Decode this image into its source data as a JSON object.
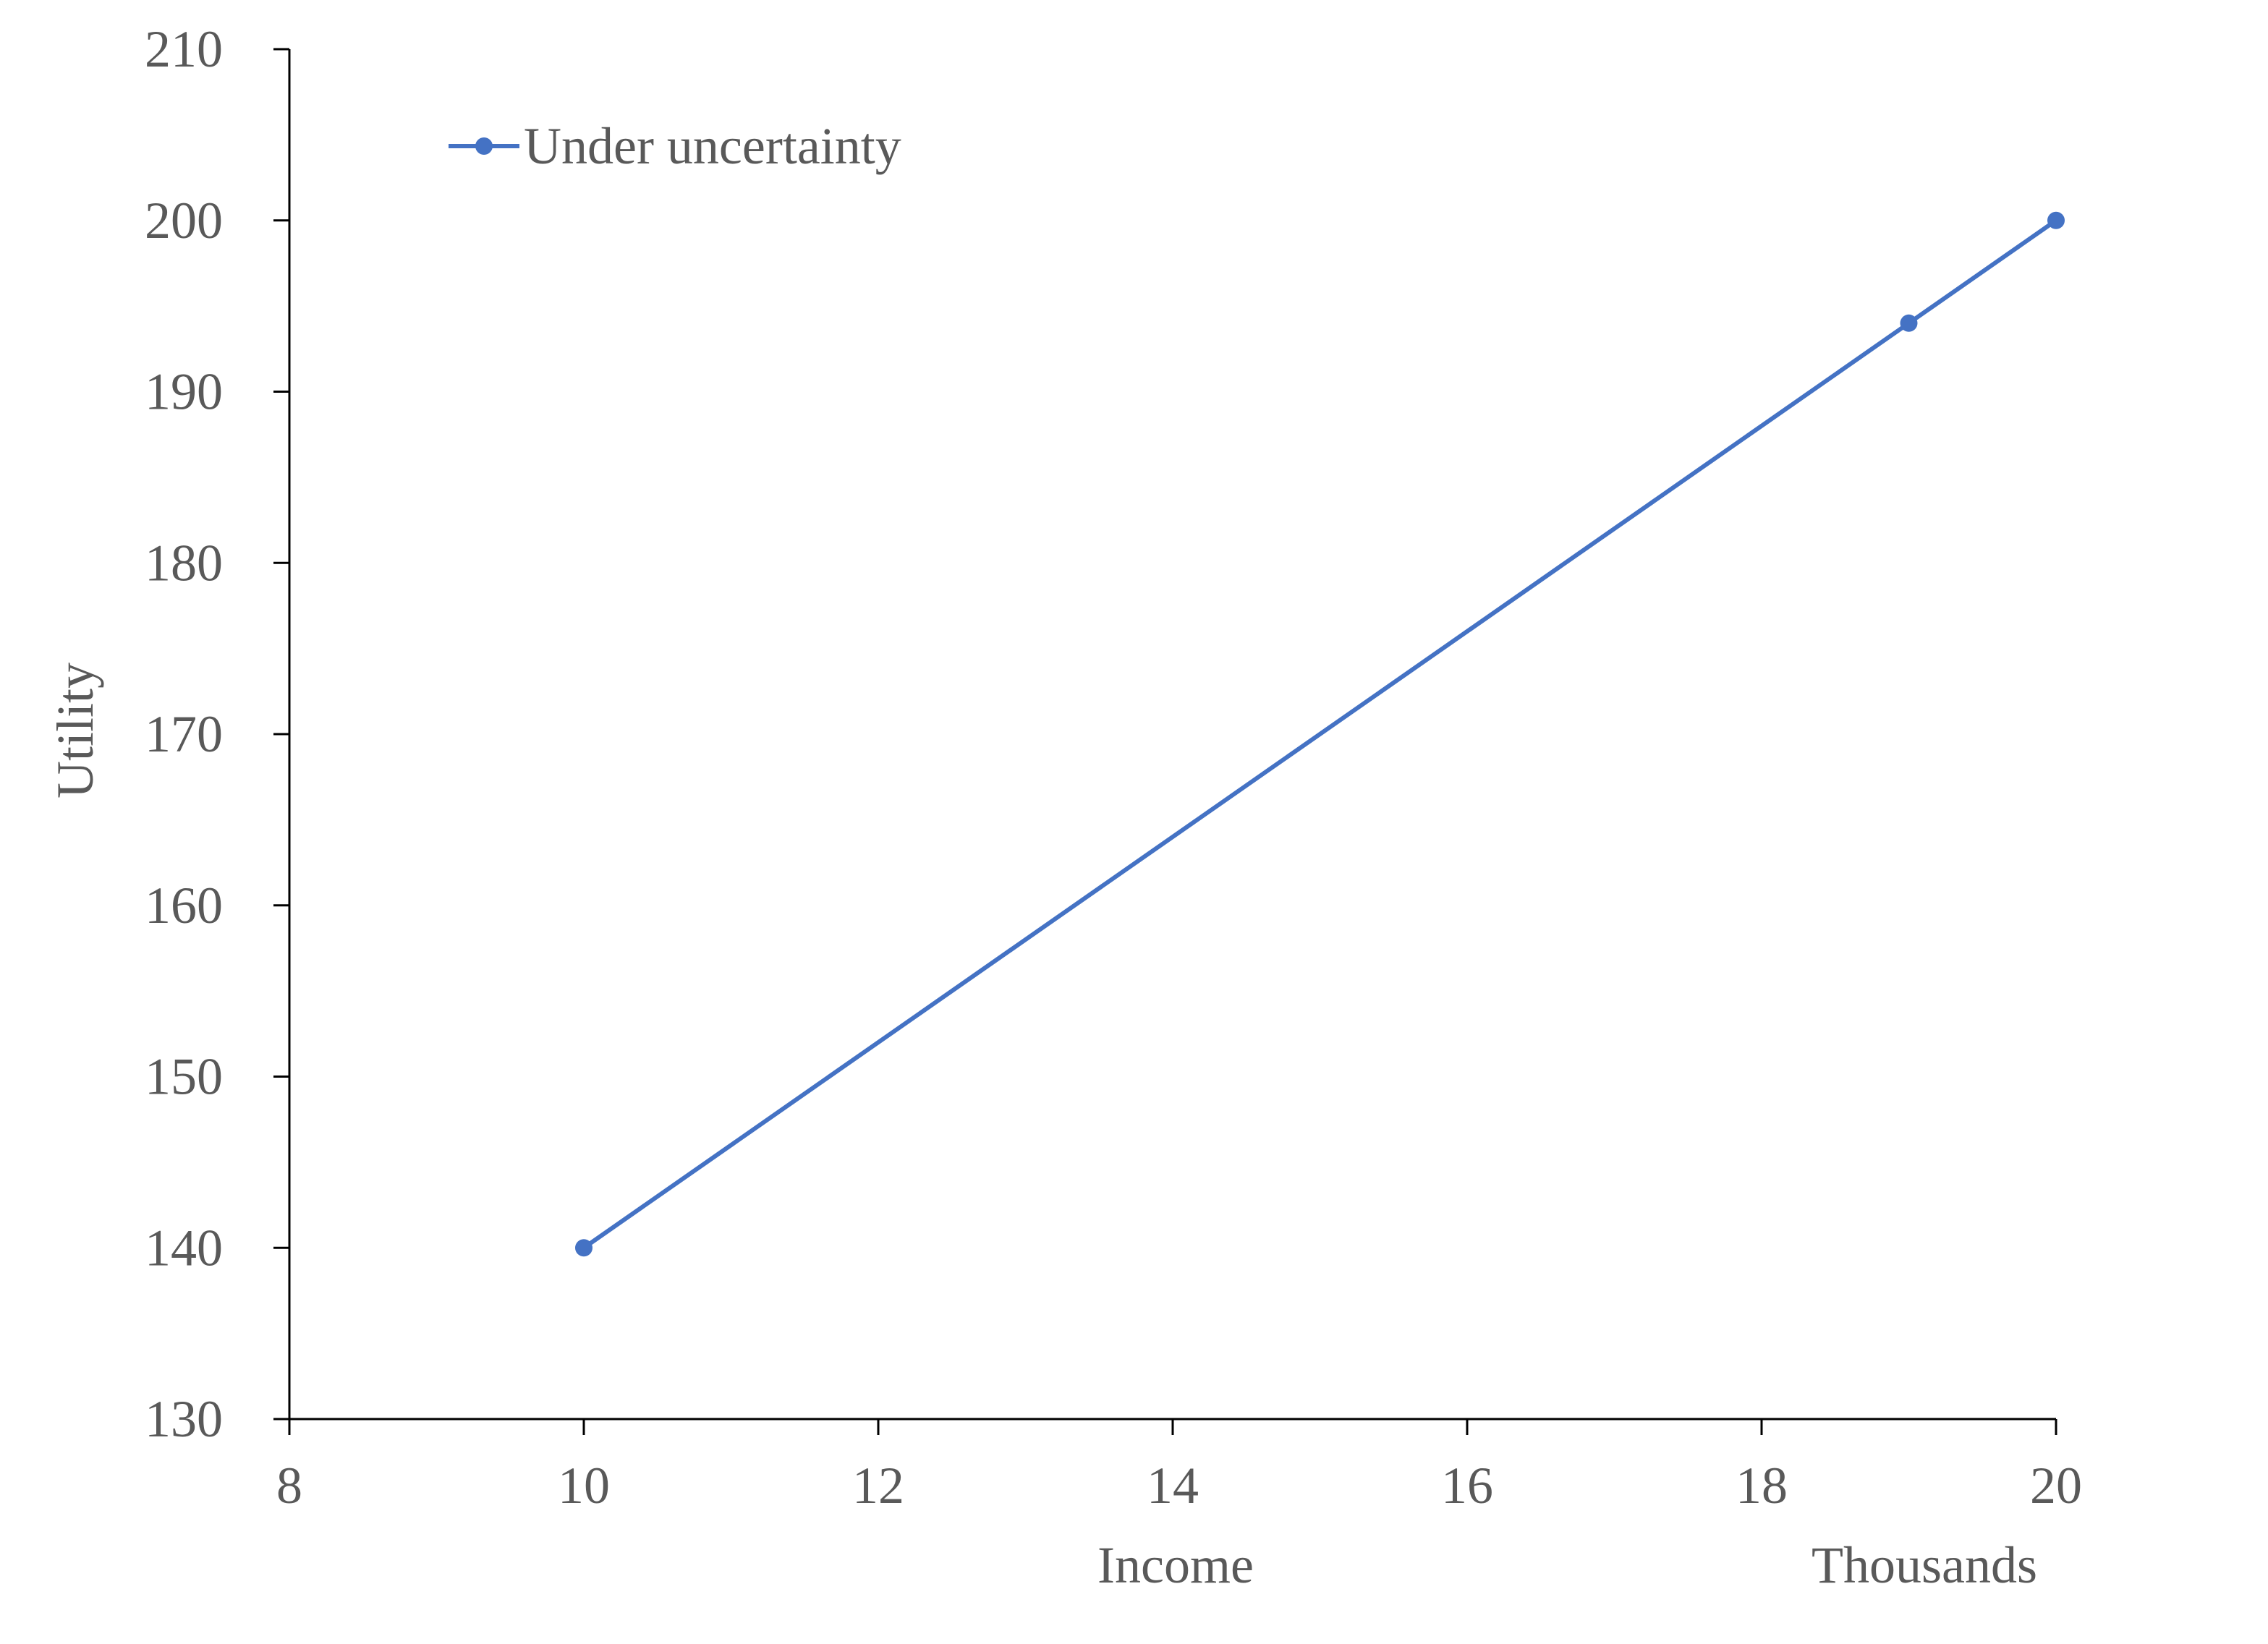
{
  "chart_data": {
    "type": "line",
    "xlabel": "Income",
    "x_units_label": "Thousands",
    "ylabel": "Utility",
    "xlim": [
      8,
      20
    ],
    "ylim": [
      130,
      210
    ],
    "x_ticks": [
      8,
      10,
      12,
      14,
      16,
      18,
      20
    ],
    "y_ticks": [
      130,
      140,
      150,
      160,
      170,
      180,
      190,
      200,
      210
    ],
    "grid": false,
    "legend_position": "top-left",
    "series": [
      {
        "name": "Under uncertainty",
        "color": "#4472C4",
        "marker": "circle",
        "points": [
          {
            "x": 10,
            "y": 140
          },
          {
            "x": 19,
            "y": 194
          },
          {
            "x": 20,
            "y": 200
          }
        ]
      }
    ]
  }
}
